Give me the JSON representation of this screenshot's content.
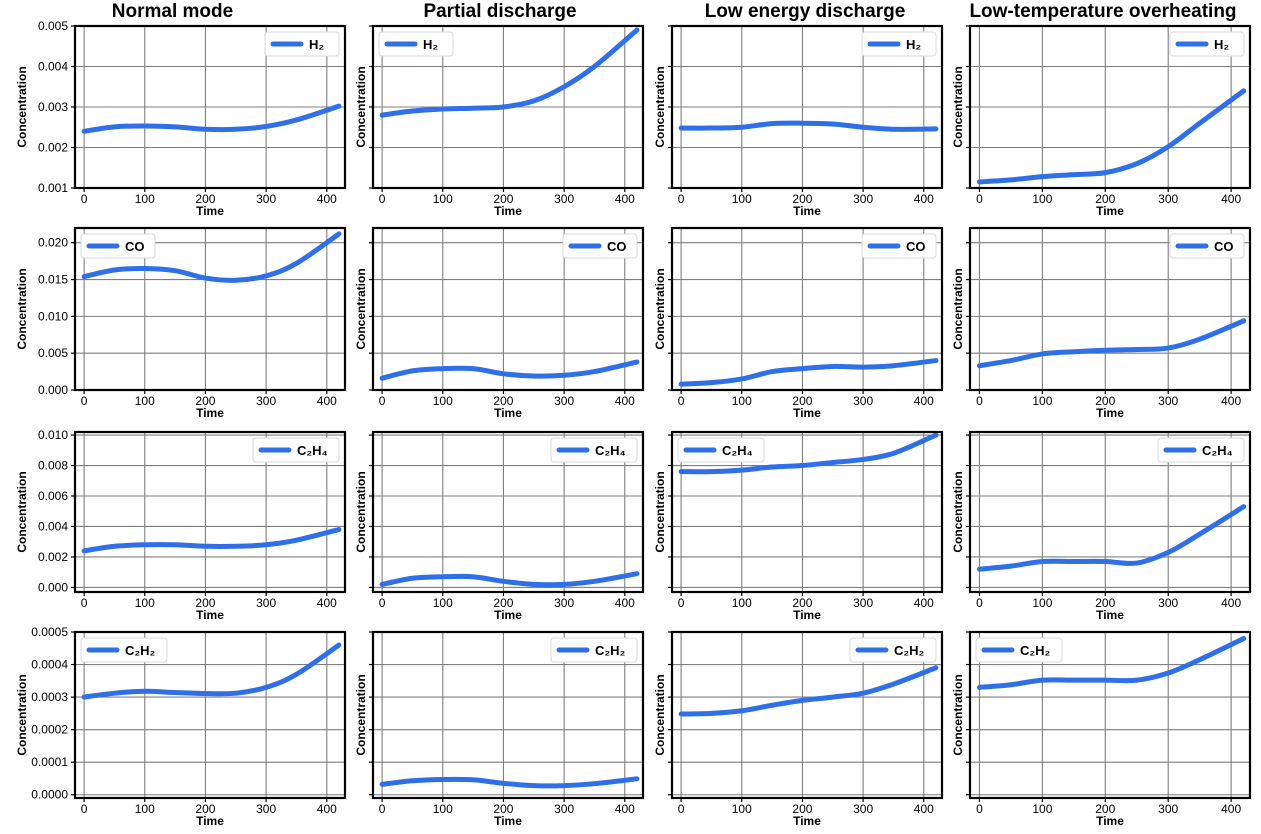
{
  "column_titles": [
    "Normal mode",
    "Partial discharge",
    "Low energy discharge",
    "Low-temperature overheating"
  ],
  "colors": {
    "line": "#2f6fe8",
    "grid": "#7f7f7f",
    "frame": "#000000",
    "text": "#000000"
  },
  "chart_data": [
    {
      "type": "line",
      "row": 0,
      "col": 0,
      "title": "Normal mode",
      "xlabel": "Time",
      "ylabel": "Concentration",
      "series": [
        {
          "name": "H₂",
          "x": [
            0,
            50,
            100,
            150,
            200,
            250,
            300,
            350,
            420
          ],
          "values": [
            0.0024,
            0.00251,
            0.00253,
            0.00251,
            0.00245,
            0.00245,
            0.00252,
            0.00268,
            0.00302
          ]
        }
      ],
      "xlim": [
        -15,
        430
      ],
      "xticks": [
        0,
        100,
        200,
        300,
        400
      ],
      "ylim": [
        0.001,
        0.005
      ],
      "yticks": [
        0.001,
        0.002,
        0.003,
        0.004,
        0.005
      ],
      "yticklabels": [
        "0.001",
        "0.002",
        "0.003",
        "0.004",
        "0.005"
      ],
      "legend": "top-right",
      "grid": true
    },
    {
      "type": "line",
      "row": 0,
      "col": 1,
      "title": "Partial discharge",
      "xlabel": "Time",
      "ylabel": "Concentration",
      "series": [
        {
          "name": "H₂",
          "x": [
            0,
            50,
            100,
            150,
            200,
            250,
            300,
            350,
            420
          ],
          "values": [
            0.0028,
            0.0029,
            0.00295,
            0.00297,
            0.003,
            0.00315,
            0.0035,
            0.004,
            0.0049
          ]
        }
      ],
      "xlim": [
        -15,
        430
      ],
      "xticks": [
        0,
        100,
        200,
        300,
        400
      ],
      "ylim": [
        0.001,
        0.005
      ],
      "yticks": [
        0.001,
        0.002,
        0.003,
        0.004,
        0.005
      ],
      "yticklabels": [
        "",
        "",
        "",
        "",
        ""
      ],
      "legend": "top-left",
      "grid": true
    },
    {
      "type": "line",
      "row": 0,
      "col": 2,
      "title": "Low energy discharge",
      "xlabel": "Time",
      "ylabel": "Concentration",
      "series": [
        {
          "name": "H₂",
          "x": [
            0,
            50,
            100,
            150,
            200,
            250,
            300,
            350,
            420
          ],
          "values": [
            0.00248,
            0.00248,
            0.0025,
            0.00259,
            0.0026,
            0.00258,
            0.0025,
            0.00245,
            0.00246
          ]
        }
      ],
      "xlim": [
        -15,
        430
      ],
      "xticks": [
        0,
        100,
        200,
        300,
        400
      ],
      "ylim": [
        0.001,
        0.005
      ],
      "yticks": [
        0.001,
        0.002,
        0.003,
        0.004,
        0.005
      ],
      "yticklabels": [
        "",
        "",
        "",
        "",
        ""
      ],
      "legend": "top-right",
      "grid": true
    },
    {
      "type": "line",
      "row": 0,
      "col": 3,
      "title": "Low-temperature overheating",
      "xlabel": "Time",
      "ylabel": "Concentration",
      "series": [
        {
          "name": "H₂",
          "x": [
            0,
            50,
            100,
            150,
            200,
            250,
            300,
            350,
            420
          ],
          "values": [
            0.00115,
            0.0012,
            0.00128,
            0.00133,
            0.00138,
            0.0016,
            0.00202,
            0.0026,
            0.0034
          ]
        }
      ],
      "xlim": [
        -15,
        430
      ],
      "xticks": [
        0,
        100,
        200,
        300,
        400
      ],
      "ylim": [
        0.001,
        0.005
      ],
      "yticks": [
        0.001,
        0.002,
        0.003,
        0.004,
        0.005
      ],
      "yticklabels": [
        "",
        "",
        "",
        "",
        ""
      ],
      "legend": "top-right",
      "grid": true
    },
    {
      "type": "line",
      "row": 1,
      "col": 0,
      "title": "",
      "xlabel": "Time",
      "ylabel": "Concentration",
      "series": [
        {
          "name": "CO",
          "x": [
            0,
            50,
            100,
            150,
            200,
            250,
            300,
            350,
            420
          ],
          "values": [
            0.0154,
            0.0163,
            0.0165,
            0.0162,
            0.0152,
            0.0149,
            0.0155,
            0.0172,
            0.0212
          ]
        }
      ],
      "xlim": [
        -15,
        430
      ],
      "xticks": [
        0,
        100,
        200,
        300,
        400
      ],
      "ylim": [
        0,
        0.022
      ],
      "yticks": [
        0,
        0.005,
        0.01,
        0.015,
        0.02
      ],
      "yticklabels": [
        "0.000",
        "0.005",
        "0.010",
        "0.015",
        "0.020"
      ],
      "legend": "top-left",
      "grid": true
    },
    {
      "type": "line",
      "row": 1,
      "col": 1,
      "title": "",
      "xlabel": "Time",
      "ylabel": "Concentration",
      "series": [
        {
          "name": "CO",
          "x": [
            0,
            50,
            100,
            150,
            200,
            250,
            300,
            350,
            420
          ],
          "values": [
            0.0016,
            0.0026,
            0.0029,
            0.0029,
            0.0022,
            0.0019,
            0.002,
            0.0025,
            0.0038
          ]
        }
      ],
      "xlim": [
        -15,
        430
      ],
      "xticks": [
        0,
        100,
        200,
        300,
        400
      ],
      "ylim": [
        0,
        0.022
      ],
      "yticks": [
        0,
        0.005,
        0.01,
        0.015,
        0.02
      ],
      "yticklabels": [
        "",
        "",
        "",
        "",
        ""
      ],
      "legend": "top-right",
      "grid": true
    },
    {
      "type": "line",
      "row": 1,
      "col": 2,
      "title": "",
      "xlabel": "Time",
      "ylabel": "Concentration",
      "series": [
        {
          "name": "CO",
          "x": [
            0,
            50,
            100,
            150,
            200,
            250,
            300,
            350,
            420
          ],
          "values": [
            0.0008,
            0.001,
            0.0015,
            0.0025,
            0.0029,
            0.0032,
            0.0031,
            0.0033,
            0.004
          ]
        }
      ],
      "xlim": [
        -15,
        430
      ],
      "xticks": [
        0,
        100,
        200,
        300,
        400
      ],
      "ylim": [
        0,
        0.022
      ],
      "yticks": [
        0,
        0.005,
        0.01,
        0.015,
        0.02
      ],
      "yticklabels": [
        "",
        "",
        "",
        "",
        ""
      ],
      "legend": "top-right",
      "grid": true
    },
    {
      "type": "line",
      "row": 1,
      "col": 3,
      "title": "",
      "xlabel": "Time",
      "ylabel": "Concentration",
      "series": [
        {
          "name": "CO",
          "x": [
            0,
            50,
            100,
            150,
            200,
            250,
            300,
            350,
            420
          ],
          "values": [
            0.0033,
            0.004,
            0.0049,
            0.0052,
            0.0054,
            0.0055,
            0.0057,
            0.0069,
            0.0094
          ]
        }
      ],
      "xlim": [
        -15,
        430
      ],
      "xticks": [
        0,
        100,
        200,
        300,
        400
      ],
      "ylim": [
        0,
        0.022
      ],
      "yticks": [
        0,
        0.005,
        0.01,
        0.015,
        0.02
      ],
      "yticklabels": [
        "",
        "",
        "",
        "",
        ""
      ],
      "legend": "top-right",
      "grid": true
    },
    {
      "type": "line",
      "row": 2,
      "col": 0,
      "title": "",
      "xlabel": "Time",
      "ylabel": "Concentration",
      "series": [
        {
          "name": "C₂H₄",
          "x": [
            0,
            50,
            100,
            150,
            200,
            250,
            300,
            350,
            420
          ],
          "values": [
            0.0024,
            0.0027,
            0.0028,
            0.0028,
            0.0027,
            0.0027,
            0.0028,
            0.0031,
            0.0038
          ]
        }
      ],
      "xlim": [
        -15,
        430
      ],
      "xticks": [
        0,
        100,
        200,
        300,
        400
      ],
      "ylim": [
        -0.0003,
        0.0102
      ],
      "yticks": [
        0,
        0.002,
        0.004,
        0.006,
        0.008,
        0.01
      ],
      "yticklabels": [
        "0.000",
        "0.002",
        "0.004",
        "0.006",
        "0.008",
        "0.010"
      ],
      "legend": "top-right",
      "grid": true
    },
    {
      "type": "line",
      "row": 2,
      "col": 1,
      "title": "",
      "xlabel": "Time",
      "ylabel": "Concentration",
      "series": [
        {
          "name": "C₂H₄",
          "x": [
            0,
            50,
            100,
            150,
            200,
            250,
            300,
            350,
            420
          ],
          "values": [
            0.0002,
            0.0006,
            0.0007,
            0.0007,
            0.0004,
            0.0002,
            0.0002,
            0.0004,
            0.0009
          ]
        }
      ],
      "xlim": [
        -15,
        430
      ],
      "xticks": [
        0,
        100,
        200,
        300,
        400
      ],
      "ylim": [
        -0.0003,
        0.0102
      ],
      "yticks": [
        0,
        0.002,
        0.004,
        0.006,
        0.008,
        0.01
      ],
      "yticklabels": [
        "",
        "",
        "",
        "",
        "",
        ""
      ],
      "legend": "top-right",
      "grid": true
    },
    {
      "type": "line",
      "row": 2,
      "col": 2,
      "title": "",
      "xlabel": "Time",
      "ylabel": "Concentration",
      "series": [
        {
          "name": "C₂H₄",
          "x": [
            0,
            50,
            100,
            150,
            200,
            250,
            300,
            350,
            420
          ],
          "values": [
            0.0076,
            0.0076,
            0.0077,
            0.0079,
            0.008,
            0.0082,
            0.0084,
            0.0088,
            0.01
          ]
        }
      ],
      "xlim": [
        -15,
        430
      ],
      "xticks": [
        0,
        100,
        200,
        300,
        400
      ],
      "ylim": [
        -0.0003,
        0.0102
      ],
      "yticks": [
        0,
        0.002,
        0.004,
        0.006,
        0.008,
        0.01
      ],
      "yticklabels": [
        "",
        "",
        "",
        "",
        "",
        ""
      ],
      "legend": "top-left",
      "grid": true
    },
    {
      "type": "line",
      "row": 2,
      "col": 3,
      "title": "",
      "xlabel": "Time",
      "ylabel": "Concentration",
      "series": [
        {
          "name": "C₂H₄",
          "x": [
            0,
            50,
            100,
            150,
            200,
            250,
            300,
            350,
            420
          ],
          "values": [
            0.0012,
            0.0014,
            0.0017,
            0.0017,
            0.0017,
            0.0016,
            0.0023,
            0.0035,
            0.0053
          ]
        }
      ],
      "xlim": [
        -15,
        430
      ],
      "xticks": [
        0,
        100,
        200,
        300,
        400
      ],
      "ylim": [
        -0.0003,
        0.0102
      ],
      "yticks": [
        0,
        0.002,
        0.004,
        0.006,
        0.008,
        0.01
      ],
      "yticklabels": [
        "",
        "",
        "",
        "",
        "",
        ""
      ],
      "legend": "top-right",
      "grid": true
    },
    {
      "type": "line",
      "row": 3,
      "col": 0,
      "title": "",
      "xlabel": "Time",
      "ylabel": "Concentration",
      "series": [
        {
          "name": "C₂H₂",
          "x": [
            0,
            50,
            100,
            150,
            200,
            250,
            300,
            350,
            420
          ],
          "values": [
            0.0003,
            0.000312,
            0.000318,
            0.000314,
            0.000311,
            0.000312,
            0.00033,
            0.00037,
            0.00046
          ]
        }
      ],
      "xlim": [
        -15,
        430
      ],
      "xticks": [
        0,
        100,
        200,
        300,
        400
      ],
      "ylim": [
        -1e-05,
        0.0005
      ],
      "yticks": [
        0,
        0.0001,
        0.0002,
        0.0003,
        0.0004,
        0.0005
      ],
      "yticklabels": [
        "0.0000",
        "0.0001",
        "0.0002",
        "0.0003",
        "0.0004",
        "0.0005"
      ],
      "legend": "top-left",
      "grid": true
    },
    {
      "type": "line",
      "row": 3,
      "col": 1,
      "title": "",
      "xlabel": "Time",
      "ylabel": "Concentration",
      "series": [
        {
          "name": "C₂H₂",
          "x": [
            0,
            50,
            100,
            150,
            200,
            250,
            300,
            350,
            420
          ],
          "values": [
            3.2e-05,
            4.3e-05,
            4.7e-05,
            4.6e-05,
            3.5e-05,
            2.8e-05,
            2.8e-05,
            3.4e-05,
            4.9e-05
          ]
        }
      ],
      "xlim": [
        -15,
        430
      ],
      "xticks": [
        0,
        100,
        200,
        300,
        400
      ],
      "ylim": [
        -1e-05,
        0.0005
      ],
      "yticks": [
        0,
        0.0001,
        0.0002,
        0.0003,
        0.0004,
        0.0005
      ],
      "yticklabels": [
        "",
        "",
        "",
        "",
        "",
        ""
      ],
      "legend": "top-right",
      "grid": true
    },
    {
      "type": "line",
      "row": 3,
      "col": 2,
      "title": "",
      "xlabel": "Time",
      "ylabel": "Concentration",
      "series": [
        {
          "name": "C₂H₂",
          "x": [
            0,
            50,
            100,
            150,
            200,
            250,
            300,
            350,
            420
          ],
          "values": [
            0.000248,
            0.00025,
            0.000258,
            0.000275,
            0.00029,
            0.0003,
            0.000312,
            0.00034,
            0.00039
          ]
        }
      ],
      "xlim": [
        -15,
        430
      ],
      "xticks": [
        0,
        100,
        200,
        300,
        400
      ],
      "ylim": [
        -1e-05,
        0.0005
      ],
      "yticks": [
        0,
        0.0001,
        0.0002,
        0.0003,
        0.0004,
        0.0005
      ],
      "yticklabels": [
        "",
        "",
        "",
        "",
        "",
        ""
      ],
      "legend": "top-right",
      "grid": true
    },
    {
      "type": "line",
      "row": 3,
      "col": 3,
      "title": "",
      "xlabel": "Time",
      "ylabel": "Concentration",
      "series": [
        {
          "name": "C₂H₂",
          "x": [
            0,
            50,
            100,
            150,
            200,
            250,
            300,
            350,
            420
          ],
          "values": [
            0.00033,
            0.000338,
            0.000352,
            0.000352,
            0.000352,
            0.000352,
            0.000374,
            0.000415,
            0.00048
          ]
        }
      ],
      "xlim": [
        -15,
        430
      ],
      "xticks": [
        0,
        100,
        200,
        300,
        400
      ],
      "ylim": [
        -1e-05,
        0.0005
      ],
      "yticks": [
        0,
        0.0001,
        0.0002,
        0.0003,
        0.0004,
        0.0005
      ],
      "yticklabels": [
        "",
        "",
        "",
        "",
        "",
        ""
      ],
      "legend": "top-left",
      "grid": true
    }
  ]
}
